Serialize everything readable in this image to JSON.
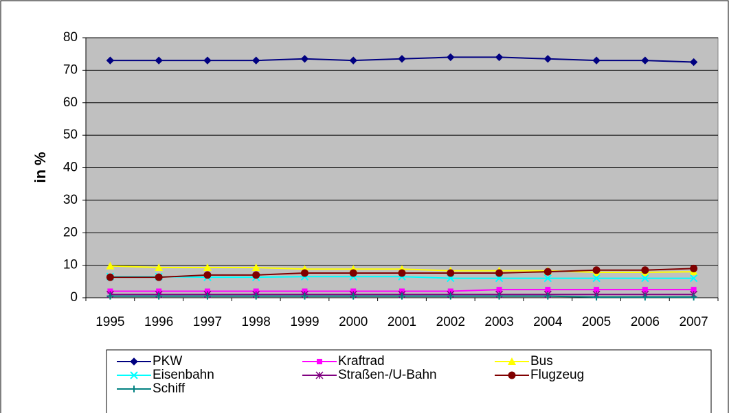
{
  "chart_data": {
    "type": "line",
    "y_label": "in %",
    "categories": [
      "1995",
      "1996",
      "1997",
      "1998",
      "1999",
      "2000",
      "2001",
      "2002",
      "2003",
      "2004",
      "2005",
      "2006",
      "2007"
    ],
    "ylim": [
      0,
      80
    ],
    "yticks": [
      0,
      10,
      20,
      30,
      40,
      50,
      60,
      70,
      80
    ],
    "grid": true,
    "legend": "bottom",
    "series": [
      {
        "name": "PKW",
        "color": "#000080",
        "marker": "diamond",
        "values": [
          73,
          73,
          73,
          73,
          73.5,
          73,
          73.5,
          74,
          74,
          73.5,
          73,
          73,
          72.5
        ]
      },
      {
        "name": "Kraftrad",
        "color": "#ff00ff",
        "marker": "square",
        "values": [
          2,
          2,
          2,
          2,
          2,
          2,
          2,
          2,
          2.5,
          2.5,
          2.5,
          2.5,
          2.5
        ]
      },
      {
        "name": "Bus",
        "color": "#ffff00",
        "marker": "triangle",
        "values": [
          9.8,
          9.3,
          9.3,
          9.3,
          8.8,
          8.8,
          8.8,
          8.3,
          8.3,
          8.3,
          7.8,
          7.8,
          8
        ]
      },
      {
        "name": "Eisenbahn",
        "color": "#00ffff",
        "marker": "x",
        "values": [
          6.5,
          6.5,
          6.3,
          6.3,
          6.5,
          6.5,
          6.5,
          6,
          6,
          6,
          6,
          6,
          6
        ]
      },
      {
        "name": "Straßen-/U-Bahn",
        "color": "#800080",
        "marker": "star",
        "values": [
          1,
          1,
          1,
          1,
          1,
          1,
          1,
          1,
          1,
          1,
          1,
          1,
          1
        ]
      },
      {
        "name": "Flugzeug",
        "color": "#800000",
        "marker": "circle",
        "values": [
          6.3,
          6.3,
          7,
          7,
          7.6,
          7.6,
          7.6,
          7.6,
          7.6,
          8,
          8.5,
          8.5,
          9
        ]
      },
      {
        "name": "Schiff",
        "color": "#008080",
        "marker": "plus",
        "values": [
          0.5,
          0.5,
          0.5,
          0.5,
          0.5,
          0.5,
          0.5,
          0.5,
          0.5,
          0.5,
          0.2,
          0.2,
          0.2
        ]
      }
    ]
  }
}
